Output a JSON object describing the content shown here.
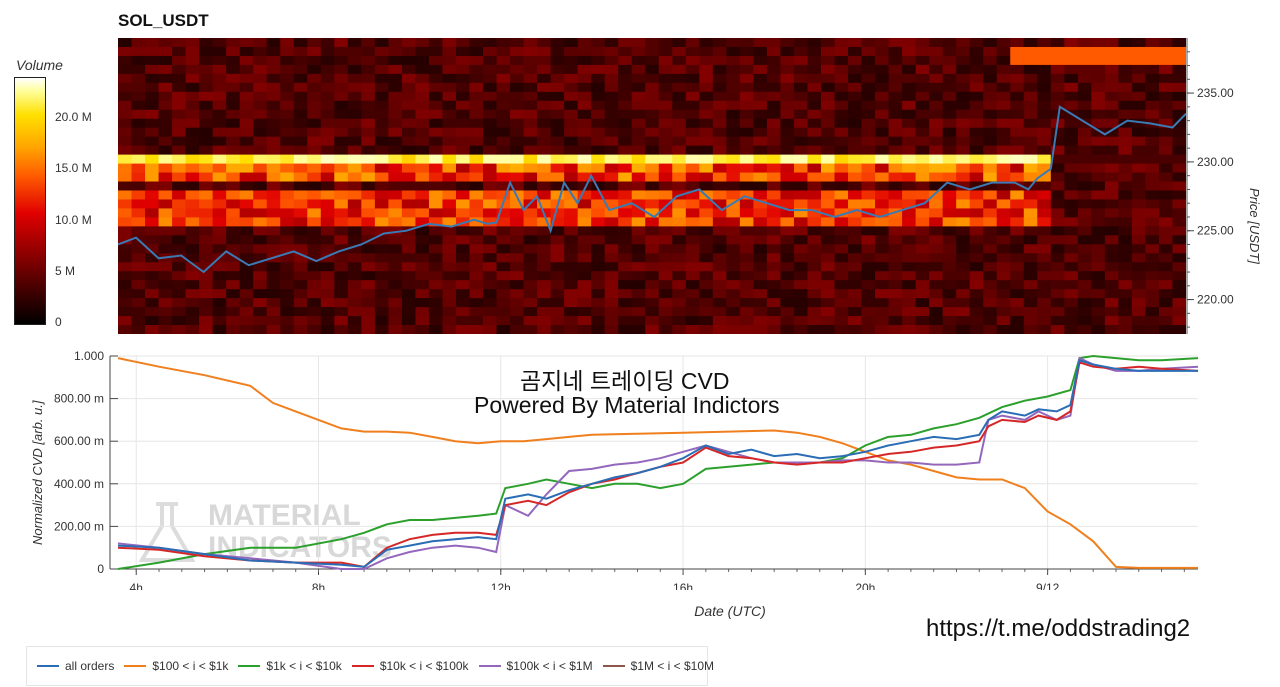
{
  "chart_data": [
    {
      "type": "heatmap",
      "title": "SOL_USDT",
      "ylabel": "Price [USDT]",
      "colorbar": {
        "title": "Volume",
        "ticks": [
          "0",
          "5 M",
          "10.0 M",
          "15.0 M",
          "20.0 M"
        ],
        "tick_values": [
          0,
          5000000,
          10000000,
          15000000,
          20000000
        ],
        "range": [
          0,
          24000000
        ]
      },
      "x_range_hours": [
        3.6,
        27.3
      ],
      "ylim": [
        217.5,
        239.0
      ],
      "y_ticks": [
        220.0,
        225.0,
        230.0,
        235.0
      ],
      "y_tick_labels": [
        "220.00",
        "225.00",
        "230.00",
        "235.00"
      ],
      "colors": {
        "price_line": "#3a7ab5"
      },
      "price_series": {
        "x": [
          3.6,
          4.0,
          4.5,
          5.0,
          5.5,
          6.0,
          6.5,
          7.0,
          7.5,
          8.0,
          8.5,
          9.0,
          9.5,
          10.0,
          10.5,
          11.0,
          11.5,
          11.8,
          12.0,
          12.3,
          12.6,
          12.9,
          13.2,
          13.5,
          13.8,
          14.1,
          14.5,
          15.0,
          15.5,
          16.0,
          16.5,
          17.0,
          17.5,
          18.0,
          18.5,
          19.0,
          19.5,
          20.0,
          20.5,
          21.0,
          21.5,
          22.0,
          22.5,
          23.0,
          23.5,
          23.8,
          24.0,
          24.3,
          24.5,
          25.0,
          25.5,
          26.0,
          26.5,
          27.0,
          27.3
        ],
        "y": [
          224.0,
          224.5,
          223.0,
          223.2,
          222.0,
          223.5,
          222.5,
          223.0,
          223.5,
          222.8,
          223.5,
          224.0,
          224.8,
          225.0,
          225.5,
          225.3,
          225.8,
          225.5,
          225.6,
          228.5,
          226.5,
          227.5,
          225.0,
          228.5,
          227.0,
          229.0,
          226.5,
          227.0,
          226.0,
          227.5,
          228.0,
          226.5,
          227.5,
          227.0,
          226.5,
          226.5,
          226.0,
          226.5,
          226.0,
          226.5,
          227.0,
          228.5,
          228.0,
          228.5,
          228.5,
          228.0,
          228.8,
          229.5,
          234.0,
          233.0,
          232.0,
          233.0,
          232.8,
          232.5,
          233.5
        ]
      }
    },
    {
      "type": "line",
      "xlabel": "Date (UTC)",
      "ylabel": "Normalized CVD [arb. u.]",
      "ylim": [
        0,
        1.0
      ],
      "y_tick_labels": [
        "0",
        "200.00 m",
        "400.00 m",
        "600.00 m",
        "800.00 m",
        "1.000"
      ],
      "y_tick_values": [
        0,
        0.2,
        0.4,
        0.6,
        0.8,
        1.0
      ],
      "x_range_hours": [
        3.6,
        27.3
      ],
      "x_tick_values": [
        4,
        8,
        12,
        16,
        20,
        24
      ],
      "x_tick_labels": [
        "4h",
        "8h",
        "12h",
        "16h",
        "20h",
        "9/12"
      ],
      "series": [
        {
          "name": "all orders",
          "color": "#2a6db5",
          "x": [
            3.6,
            4.5,
            5.5,
            6.5,
            7.5,
            8.5,
            9.0,
            9.5,
            10.0,
            10.5,
            11.0,
            11.5,
            11.9,
            12.1,
            12.6,
            13.0,
            13.5,
            14.0,
            14.5,
            15.0,
            15.5,
            16.0,
            16.5,
            17.0,
            17.5,
            18.0,
            18.5,
            19.0,
            19.5,
            20.0,
            20.5,
            21.0,
            21.5,
            22.0,
            22.5,
            22.7,
            23.0,
            23.5,
            23.8,
            24.2,
            24.5,
            24.7,
            25.0,
            25.5,
            26.0,
            26.5,
            27.3
          ],
          "y": [
            0.11,
            0.1,
            0.07,
            0.04,
            0.03,
            0.02,
            0.01,
            0.09,
            0.11,
            0.13,
            0.14,
            0.15,
            0.14,
            0.33,
            0.35,
            0.33,
            0.37,
            0.4,
            0.43,
            0.45,
            0.48,
            0.52,
            0.58,
            0.54,
            0.56,
            0.53,
            0.54,
            0.52,
            0.53,
            0.55,
            0.58,
            0.6,
            0.62,
            0.61,
            0.63,
            0.7,
            0.74,
            0.72,
            0.75,
            0.74,
            0.77,
            0.98,
            0.96,
            0.94,
            0.93,
            0.93,
            0.93
          ]
        },
        {
          "name": "$100 < i < $1k",
          "color": "#f07f1e",
          "x": [
            3.6,
            4.5,
            5.5,
            6.5,
            7.0,
            7.5,
            8.0,
            8.5,
            9.0,
            9.5,
            10.0,
            10.5,
            11.0,
            11.5,
            12.0,
            12.5,
            13.0,
            13.5,
            14.0,
            15.0,
            16.0,
            17.0,
            18.0,
            18.5,
            19.0,
            19.5,
            20.0,
            20.5,
            21.0,
            21.5,
            22.0,
            22.5,
            23.0,
            23.5,
            24.0,
            24.5,
            25.0,
            25.5,
            26.0,
            26.5,
            27.3
          ],
          "y": [
            0.99,
            0.95,
            0.91,
            0.86,
            0.78,
            0.74,
            0.7,
            0.66,
            0.645,
            0.645,
            0.64,
            0.62,
            0.6,
            0.59,
            0.6,
            0.6,
            0.61,
            0.62,
            0.63,
            0.635,
            0.64,
            0.645,
            0.65,
            0.64,
            0.62,
            0.59,
            0.55,
            0.51,
            0.49,
            0.46,
            0.43,
            0.42,
            0.42,
            0.38,
            0.27,
            0.21,
            0.13,
            0.01,
            0.005,
            0.005,
            0.005
          ]
        },
        {
          "name": "$1k < i < $10k",
          "color": "#2ca02c",
          "x": [
            3.6,
            4.5,
            5.5,
            6.5,
            7.5,
            8.5,
            9.0,
            9.5,
            10.0,
            10.5,
            11.0,
            11.5,
            11.9,
            12.1,
            12.6,
            13.0,
            13.5,
            14.0,
            14.5,
            15.0,
            15.5,
            16.0,
            16.5,
            17.0,
            17.5,
            18.0,
            18.5,
            19.0,
            19.5,
            20.0,
            20.5,
            21.0,
            21.5,
            22.0,
            22.5,
            23.0,
            23.5,
            24.0,
            24.5,
            24.7,
            25.0,
            25.5,
            26.0,
            26.5,
            27.3
          ],
          "y": [
            0.0,
            0.03,
            0.07,
            0.1,
            0.1,
            0.14,
            0.17,
            0.21,
            0.23,
            0.23,
            0.24,
            0.25,
            0.26,
            0.38,
            0.4,
            0.42,
            0.4,
            0.38,
            0.4,
            0.4,
            0.38,
            0.4,
            0.47,
            0.48,
            0.49,
            0.5,
            0.5,
            0.5,
            0.52,
            0.58,
            0.62,
            0.63,
            0.66,
            0.68,
            0.71,
            0.76,
            0.79,
            0.81,
            0.84,
            0.99,
            1.0,
            0.99,
            0.98,
            0.98,
            0.99
          ]
        },
        {
          "name": "$10k < i < $100k",
          "color": "#d62728",
          "x": [
            3.6,
            4.5,
            5.5,
            6.5,
            7.5,
            8.5,
            9.0,
            9.5,
            10.0,
            10.5,
            11.0,
            11.5,
            11.9,
            12.1,
            12.6,
            13.0,
            13.5,
            14.0,
            14.5,
            15.0,
            15.5,
            16.0,
            16.5,
            17.0,
            17.5,
            18.0,
            18.5,
            19.0,
            19.5,
            20.0,
            20.5,
            21.0,
            21.5,
            22.0,
            22.5,
            22.7,
            23.0,
            23.5,
            23.8,
            24.2,
            24.5,
            24.7,
            25.0,
            25.5,
            26.0,
            26.5,
            27.3
          ],
          "y": [
            0.1,
            0.09,
            0.06,
            0.04,
            0.03,
            0.03,
            0.01,
            0.1,
            0.14,
            0.16,
            0.17,
            0.17,
            0.16,
            0.3,
            0.32,
            0.3,
            0.36,
            0.4,
            0.42,
            0.45,
            0.48,
            0.5,
            0.57,
            0.53,
            0.52,
            0.5,
            0.49,
            0.5,
            0.5,
            0.52,
            0.54,
            0.55,
            0.57,
            0.58,
            0.6,
            0.67,
            0.7,
            0.69,
            0.72,
            0.7,
            0.74,
            0.97,
            0.95,
            0.94,
            0.95,
            0.94,
            0.93
          ]
        },
        {
          "name": "$100k < i < $1M",
          "color": "#9467bd",
          "x": [
            3.6,
            4.5,
            5.5,
            6.5,
            7.5,
            8.5,
            9.0,
            9.5,
            10.0,
            10.5,
            11.0,
            11.5,
            11.9,
            12.1,
            12.6,
            13.0,
            13.5,
            14.0,
            14.5,
            15.0,
            15.5,
            16.0,
            16.5,
            17.0,
            17.5,
            18.0,
            18.5,
            19.0,
            19.5,
            20.0,
            20.5,
            21.0,
            21.5,
            22.0,
            22.5,
            22.7,
            23.0,
            23.5,
            23.8,
            24.2,
            24.5,
            24.7,
            25.0,
            25.5,
            26.0,
            26.5,
            27.3
          ],
          "y": [
            0.12,
            0.1,
            0.07,
            0.05,
            0.03,
            0.0,
            0.0,
            0.05,
            0.08,
            0.1,
            0.11,
            0.1,
            0.08,
            0.3,
            0.25,
            0.35,
            0.46,
            0.47,
            0.49,
            0.5,
            0.52,
            0.55,
            0.58,
            0.55,
            0.52,
            0.5,
            0.5,
            0.5,
            0.51,
            0.51,
            0.5,
            0.5,
            0.49,
            0.49,
            0.5,
            0.7,
            0.72,
            0.7,
            0.74,
            0.7,
            0.72,
            0.99,
            0.96,
            0.93,
            0.93,
            0.94,
            0.95
          ]
        },
        {
          "name": "$1M < i < $10M",
          "color": "#8c564b",
          "x": [
            3.6,
            27.3
          ],
          "y": [
            null,
            null
          ]
        }
      ]
    }
  ],
  "overlay": {
    "line1": "곰지네 트레이딩 CVD",
    "line2": "Powered By Material Indictors"
  },
  "watermark": {
    "line1": "MATERIAL",
    "line2": "INDICATORS"
  },
  "link_text": "https://t.me/oddstrading2"
}
